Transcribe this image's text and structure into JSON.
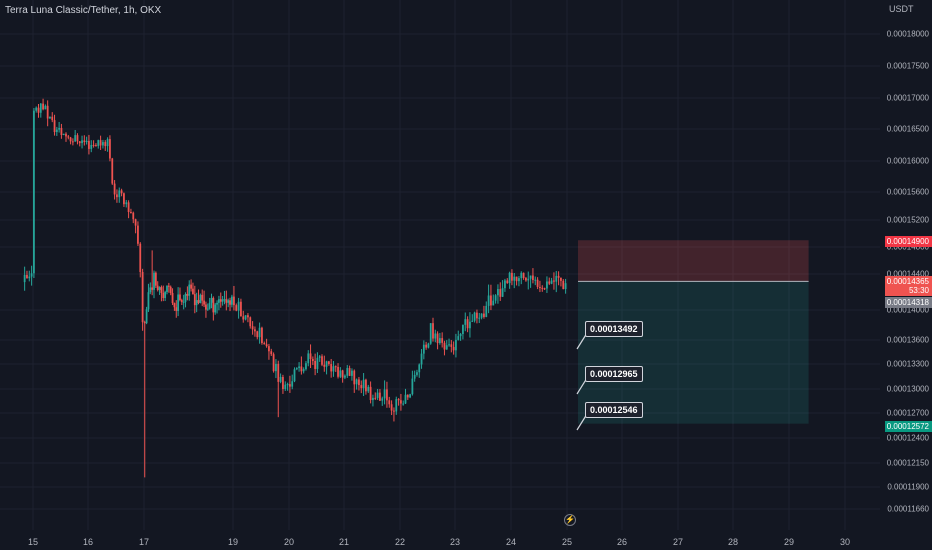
{
  "header": {
    "title": "Terra Luna Classic/Tether, 1h, OKX",
    "unit": "USDT"
  },
  "chart_data": {
    "type": "candlestick",
    "y_ticks": [
      "0.00018000",
      "0.00017500",
      "0.00017000",
      "0.00016500",
      "0.00016000",
      "0.00015600",
      "0.00015200",
      "0.00014800",
      "0.00014400",
      "0.00014000",
      "0.00013600",
      "0.00013300",
      "0.00013000",
      "0.00012700",
      "0.00012400",
      "0.00012150",
      "0.00011900",
      "0.00011660"
    ],
    "x_ticks": [
      "15",
      "16",
      "17",
      "19",
      "20",
      "21",
      "22",
      "23",
      "24",
      "25",
      "26",
      "27",
      "28",
      "29",
      "30"
    ],
    "current_price": "0.00014365",
    "countdown": "53:30",
    "price_labels": {
      "stop_loss": "0.00014900",
      "entry": "0.00014318",
      "target": "0.00012572"
    },
    "target_labels": [
      "0.00013492",
      "0.00012965",
      "0.00012546"
    ],
    "close_path": [
      [
        15.0,
        0.0001684
      ],
      [
        15.2,
        0.0001688
      ],
      [
        15.4,
        0.000165
      ],
      [
        15.7,
        0.0001636
      ],
      [
        16.1,
        0.0001626
      ],
      [
        16.35,
        0.0001632
      ],
      [
        16.45,
        0.0001562
      ],
      [
        16.7,
        0.0001545
      ],
      [
        16.85,
        0.0001505
      ],
      [
        16.92,
        0.000146
      ],
      [
        16.97,
        0.000139
      ],
      [
        17.0,
        0.0001378
      ],
      [
        17.1,
        0.000142
      ],
      [
        17.2,
        0.0001432
      ],
      [
        17.4,
        0.0001425
      ],
      [
        17.7,
        0.0001408
      ],
      [
        18.0,
        0.0001422
      ],
      [
        18.4,
        0.0001405
      ],
      [
        18.8,
        0.0001415
      ],
      [
        19.1,
        0.0001402
      ],
      [
        19.4,
        0.0001375
      ],
      [
        19.7,
        0.0001335
      ],
      [
        19.9,
        0.00013
      ],
      [
        20.1,
        0.0001318
      ],
      [
        20.4,
        0.0001338
      ],
      [
        20.8,
        0.0001322
      ],
      [
        21.2,
        0.0001312
      ],
      [
        21.5,
        0.0001295
      ],
      [
        21.8,
        0.0001285
      ],
      [
        22.0,
        0.000128
      ],
      [
        22.15,
        0.000129
      ],
      [
        22.3,
        0.0001322
      ],
      [
        22.55,
        0.000137
      ],
      [
        22.8,
        0.0001355
      ],
      [
        23.0,
        0.0001352
      ],
      [
        23.2,
        0.0001378
      ],
      [
        23.4,
        0.0001392
      ],
      [
        23.55,
        0.0001404
      ],
      [
        23.75,
        0.000142
      ],
      [
        24.0,
        0.000143
      ],
      [
        24.2,
        0.0001437
      ],
      [
        24.4,
        0.000143
      ],
      [
        24.6,
        0.0001431
      ],
      [
        24.8,
        0.0001437
      ],
      [
        25.0,
        0.0001431
      ]
    ]
  },
  "colors": {
    "up": "#26a69a",
    "down": "#ef5350",
    "stop_zone": "#ef5350",
    "target_zone": "#26a69a"
  }
}
